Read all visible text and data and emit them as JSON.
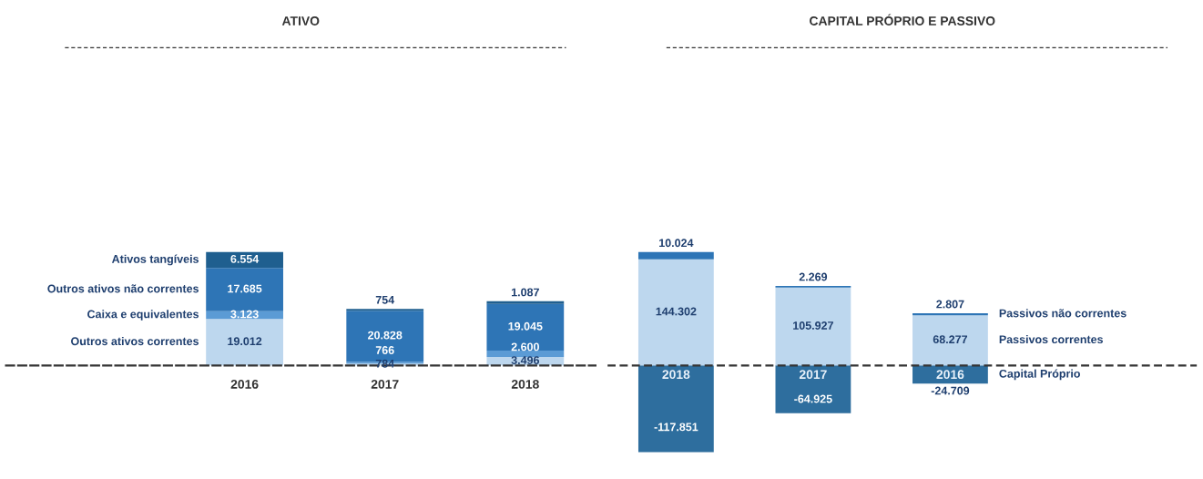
{
  "chart_data": [
    {
      "type": "bar",
      "title": "ATIVO",
      "categories": [
        "2016",
        "2017",
        "2018"
      ],
      "stacked": true,
      "legend": false,
      "grid": false,
      "series": [
        {
          "name": "Outros ativos correntes",
          "color": "#bdd7ee",
          "values": [
            19012,
            784,
            3496
          ],
          "value_labels": [
            "19.012",
            "784",
            "3.496"
          ]
        },
        {
          "name": "Caixa e equivalentes",
          "color": "#5b9bd5",
          "values": [
            3123,
            766,
            2600
          ],
          "value_labels": [
            "3.123",
            "766",
            "2.600"
          ]
        },
        {
          "name": "Outros ativos não correntes",
          "color": "#2e75b6",
          "values": [
            17685,
            20828,
            19045
          ],
          "value_labels": [
            "17.685",
            "20.828",
            "19.045"
          ]
        },
        {
          "name": "Ativos tangíveis",
          "color": "#1f5f8f",
          "values": [
            6554,
            754,
            1087
          ],
          "value_labels": [
            "6.554",
            "754",
            "1.087"
          ]
        }
      ]
    },
    {
      "type": "bar",
      "title": "CAPITAL PRÓPRIO E PASSIVO",
      "categories": [
        "2018",
        "2017",
        "2016"
      ],
      "stacked": true,
      "legend": false,
      "grid": false,
      "ref_lines": [
        {
          "axis": "y",
          "value": 0,
          "line_style": "dashed",
          "color": "#333333"
        }
      ],
      "series": [
        {
          "name": "Capital Próprio",
          "color": "#2e6e9e",
          "values": [
            -117851,
            -64925,
            -24709
          ],
          "value_labels": [
            "-117.851",
            "-64.925",
            "-24.709"
          ]
        },
        {
          "name": "Passivos correntes",
          "color": "#bdd7ee",
          "values": [
            144302,
            105927,
            68277
          ],
          "value_labels": [
            "144.302",
            "105.927",
            "68.277"
          ]
        },
        {
          "name": "Passivos não correntes",
          "color": "#2e75b6",
          "values": [
            10024,
            2269,
            2807
          ],
          "value_labels": [
            "10.024",
            "2.269",
            "2.807"
          ]
        }
      ]
    }
  ]
}
